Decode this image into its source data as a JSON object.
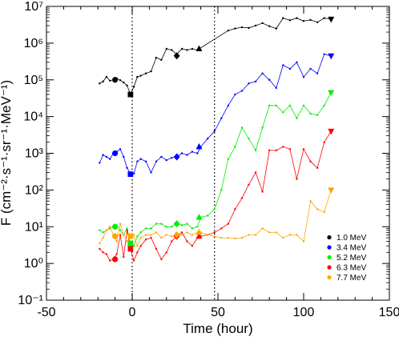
{
  "chart_data": {
    "type": "line",
    "xlabel": "Time (hour)",
    "ylabel": "F (cm⁻²·s⁻¹·sr⁻¹·MeV⁻¹)",
    "xlim": [
      -50,
      150
    ],
    "ylim": [
      0.1,
      10000000
    ],
    "y_scale": "log",
    "x_ticks": [
      -50,
      0,
      50,
      100,
      150
    ],
    "x_tick_labels": [
      "-50",
      "0",
      "50",
      "100",
      "150"
    ],
    "y_ticks": [
      0.1,
      1,
      10,
      100,
      1000,
      10000,
      100000,
      1000000,
      10000000
    ],
    "y_tick_labels": [
      "10⁻¹",
      "10⁰",
      "10¹",
      "10²",
      "10³",
      "10⁴",
      "10⁵",
      "10⁶",
      "10⁷"
    ],
    "vertical_reference_lines": [
      0,
      48
    ],
    "legend_position": "bottom-right",
    "series": [
      {
        "name": "1.0 MeV",
        "color": "#000000",
        "x": [
          -19,
          -17,
          -15,
          -13,
          -11,
          -9,
          -7,
          -5,
          -3,
          -1,
          1,
          3,
          5,
          8,
          11,
          14,
          17,
          20,
          23,
          26,
          29,
          32,
          35,
          38,
          56,
          60,
          64,
          68,
          72,
          76,
          80,
          84,
          88,
          92,
          96,
          100,
          104,
          108,
          112,
          116
        ],
        "y": [
          80000,
          90000,
          120000,
          95000,
          100000,
          110000,
          98000,
          85000,
          70000,
          40000,
          65000,
          120000,
          130000,
          150000,
          170000,
          400000,
          350000,
          700000,
          650000,
          500000,
          700000,
          650000,
          700000,
          650000,
          2200000,
          2500000,
          2700000,
          2600000,
          3000000,
          3500000,
          2900000,
          2500000,
          4800000,
          4200000,
          4800000,
          4000000,
          4300000,
          3700000,
          4800000,
          4500000
        ]
      },
      {
        "name": "3.4 MeV",
        "color": "#0000ff",
        "x": [
          -19,
          -17,
          -15,
          -13,
          -11,
          -9,
          -7,
          -5,
          -3,
          -1,
          1,
          3,
          5,
          8,
          11,
          14,
          17,
          20,
          23,
          26,
          29,
          32,
          35,
          38,
          40,
          44,
          48,
          52,
          56,
          60,
          64,
          68,
          72,
          76,
          80,
          84,
          88,
          92,
          96,
          100,
          104,
          108,
          112,
          116
        ],
        "y": [
          550,
          900,
          800,
          700,
          1000,
          1100,
          1300,
          800,
          400,
          280,
          280,
          600,
          700,
          600,
          300,
          600,
          800,
          650,
          750,
          800,
          1000,
          900,
          1100,
          1000,
          1500,
          2500,
          4000,
          9000,
          20000,
          40000,
          50000,
          80000,
          90000,
          150000,
          100000,
          60000,
          250000,
          200000,
          300000,
          120000,
          200000,
          150000,
          500000,
          450000
        ]
      },
      {
        "name": "5.2 MeV",
        "color": "#00ee00",
        "x": [
          -19,
          -17,
          -15,
          -13,
          -11,
          -9,
          -7,
          -5,
          -3,
          -1,
          1,
          3,
          5,
          8,
          11,
          14,
          17,
          20,
          23,
          26,
          29,
          32,
          35,
          38,
          40,
          44,
          48,
          52,
          56,
          60,
          64,
          68,
          72,
          76,
          80,
          84,
          88,
          92,
          96,
          100,
          104,
          108,
          112,
          116
        ],
        "y": [
          8,
          7,
          8,
          9,
          10,
          11,
          8,
          6,
          9,
          3.5,
          3,
          5.5,
          7,
          9,
          9,
          12,
          12,
          10,
          10,
          12,
          11,
          12,
          9,
          10,
          18,
          20,
          30,
          100,
          700,
          1500,
          5000,
          2500,
          1200,
          5000,
          20000,
          20000,
          13000,
          20000,
          9000,
          20000,
          12000,
          11000,
          20000,
          45000
        ]
      },
      {
        "name": "6.3 MeV",
        "color": "#ff0000",
        "x": [
          -19,
          -17,
          -15,
          -13,
          -11,
          -9,
          -7,
          -5,
          -3,
          -1,
          1,
          3,
          5,
          8,
          11,
          14,
          17,
          20,
          23,
          26,
          29,
          32,
          35,
          38,
          40,
          44,
          48,
          52,
          56,
          60,
          64,
          68,
          72,
          76,
          80,
          84,
          88,
          92,
          96,
          100,
          104,
          108,
          112,
          116
        ],
        "y": [
          2.5,
          2,
          1.8,
          1.2,
          1.3,
          1.8,
          6,
          1.5,
          8,
          2.5,
          1.2,
          2,
          3,
          4.5,
          5,
          2.5,
          1.3,
          2,
          4,
          5.5,
          7,
          4,
          3,
          5,
          5.5,
          6,
          7,
          9,
          12,
          30,
          60,
          140,
          300,
          90,
          1200,
          1200,
          1500,
          1300,
          200,
          1300,
          600,
          400,
          2000,
          4000
        ]
      },
      {
        "name": "7.7 MeV",
        "color": "#ffa500",
        "x": [
          -19,
          -17,
          -15,
          -13,
          -11,
          -9,
          -7,
          -5,
          -3,
          -1,
          1,
          3,
          5,
          8,
          11,
          14,
          17,
          20,
          23,
          26,
          29,
          32,
          35,
          38,
          40,
          44,
          48,
          52,
          56,
          60,
          64,
          68,
          72,
          76,
          80,
          84,
          88,
          92,
          96,
          100,
          104,
          108,
          112,
          116
        ],
        "y": [
          3.5,
          5,
          8,
          10,
          6,
          4,
          12,
          6,
          4,
          5.5,
          6,
          3,
          5,
          6,
          6,
          7,
          5,
          6,
          5.5,
          6,
          6,
          7,
          6,
          7,
          7,
          6,
          5.5,
          5,
          5,
          4.8,
          5,
          6,
          6,
          9,
          7,
          7,
          5,
          6,
          6,
          4,
          50,
          30,
          25,
          100
        ]
      }
    ],
    "markers": [
      {
        "series": "1.0 MeV",
        "shape": "circle",
        "x": -10,
        "y": 100000
      },
      {
        "series": "1.0 MeV",
        "shape": "square",
        "x": -1,
        "y": 40000
      },
      {
        "series": "1.0 MeV",
        "shape": "diamond",
        "x": 26,
        "y": 450000
      },
      {
        "series": "1.0 MeV",
        "shape": "triangle-up",
        "x": 39,
        "y": 700000
      },
      {
        "series": "1.0 MeV",
        "shape": "triangle-down",
        "x": 116,
        "y": 4500000
      },
      {
        "series": "3.4 MeV",
        "shape": "circle",
        "x": -10,
        "y": 1000
      },
      {
        "series": "3.4 MeV",
        "shape": "square",
        "x": -1,
        "y": 270
      },
      {
        "series": "3.4 MeV",
        "shape": "diamond",
        "x": 26,
        "y": 800
      },
      {
        "series": "3.4 MeV",
        "shape": "triangle-up",
        "x": 39,
        "y": 1500
      },
      {
        "series": "3.4 MeV",
        "shape": "triangle-down",
        "x": 116,
        "y": 450000
      },
      {
        "series": "5.2 MeV",
        "shape": "circle",
        "x": -10,
        "y": 10
      },
      {
        "series": "5.2 MeV",
        "shape": "square",
        "x": -1,
        "y": 3.5
      },
      {
        "series": "5.2 MeV",
        "shape": "diamond",
        "x": 26,
        "y": 12
      },
      {
        "series": "5.2 MeV",
        "shape": "triangle-up",
        "x": 39,
        "y": 18
      },
      {
        "series": "5.2 MeV",
        "shape": "triangle-down",
        "x": 116,
        "y": 45000
      },
      {
        "series": "6.3 MeV",
        "shape": "circle",
        "x": -10,
        "y": 1.3
      },
      {
        "series": "6.3 MeV",
        "shape": "square",
        "x": -1,
        "y": 2.5
      },
      {
        "series": "6.3 MeV",
        "shape": "diamond",
        "x": 26,
        "y": 5.5
      },
      {
        "series": "6.3 MeV",
        "shape": "triangle-up",
        "x": 39,
        "y": 5.5
      },
      {
        "series": "6.3 MeV",
        "shape": "triangle-down",
        "x": 116,
        "y": 4000
      },
      {
        "series": "7.7 MeV",
        "shape": "circle",
        "x": -10,
        "y": 5.5
      },
      {
        "series": "7.7 MeV",
        "shape": "square",
        "x": -1,
        "y": 5.5
      },
      {
        "series": "7.7 MeV",
        "shape": "diamond",
        "x": 26,
        "y": 6
      },
      {
        "series": "7.7 MeV",
        "shape": "triangle-up",
        "x": 39,
        "y": 7
      },
      {
        "series": "7.7 MeV",
        "shape": "triangle-down",
        "x": 116,
        "y": 100
      }
    ]
  }
}
